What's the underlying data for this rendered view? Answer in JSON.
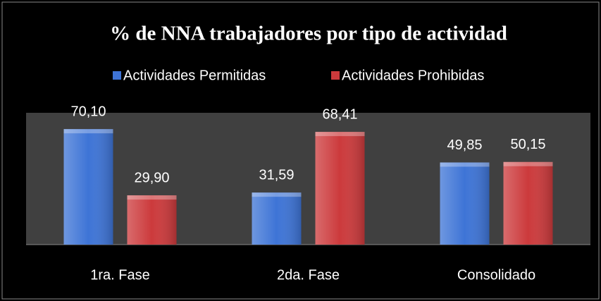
{
  "chart_data": {
    "type": "bar",
    "title": "%  de NNA trabajadores por tipo de actividad",
    "categories": [
      "1ra. Fase",
      "2da. Fase",
      "Consolidado"
    ],
    "series": [
      {
        "name": "Actividades Permitidas",
        "color": "#3e74d6",
        "values": [
          70.1,
          31.59,
          49.85
        ],
        "value_labels": [
          "70,10",
          "31,59",
          "49,85"
        ]
      },
      {
        "name": "Actividades Prohibidas",
        "color": "#cc3a3c",
        "values": [
          29.9,
          68.41,
          50.15
        ],
        "value_labels": [
          "29,90",
          "68,41",
          "50,15"
        ]
      }
    ],
    "ylim": [
      0,
      80
    ],
    "legend": "top"
  }
}
